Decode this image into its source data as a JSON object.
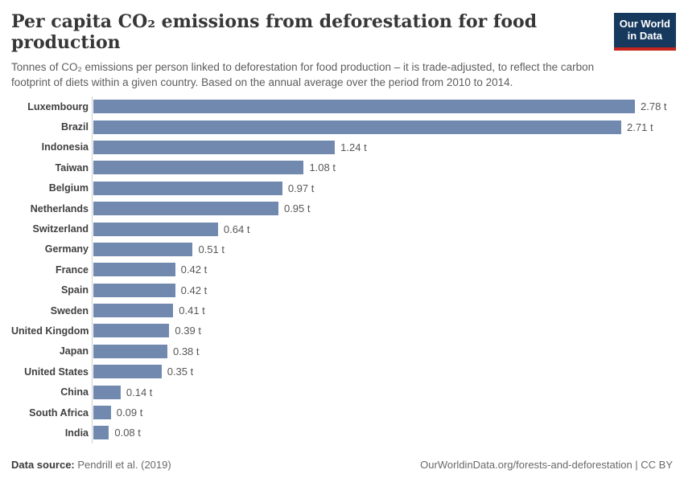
{
  "header": {
    "title": "Per capita CO₂ emissions from deforestation for food production",
    "subtitle": "Tonnes of CO₂ emissions per person linked to deforestation for food production – it is trade-adjusted, to reflect the carbon footprint of diets within a given country. Based on the annual average over the period from 2010 to 2014."
  },
  "logo": {
    "line1": "Our World",
    "line2": "in Data",
    "bg_color": "#16395d",
    "accent_color": "#c4261d"
  },
  "chart_data": {
    "type": "bar",
    "orientation": "horizontal",
    "title": "Per capita CO₂ emissions from deforestation for food production",
    "unit": "t",
    "xlim": [
      0,
      2.78
    ],
    "grid": false,
    "bar_color": "#7189af",
    "axis_line_color": "#cfcfcf",
    "value_label_position": "end",
    "categories": [
      "Luxembourg",
      "Brazil",
      "Indonesia",
      "Taiwan",
      "Belgium",
      "Netherlands",
      "Switzerland",
      "Germany",
      "France",
      "Spain",
      "Sweden",
      "United Kingdom",
      "Japan",
      "United States",
      "China",
      "South Africa",
      "India"
    ],
    "values": [
      2.78,
      2.71,
      1.24,
      1.08,
      0.97,
      0.95,
      0.64,
      0.51,
      0.42,
      0.42,
      0.41,
      0.39,
      0.38,
      0.35,
      0.14,
      0.09,
      0.08
    ],
    "value_labels": [
      "2.78 t",
      "2.71 t",
      "1.24 t",
      "1.08 t",
      "0.97 t",
      "0.95 t",
      "0.64 t",
      "0.51 t",
      "0.42 t",
      "0.42 t",
      "0.41 t",
      "0.39 t",
      "0.38 t",
      "0.35 t",
      "0.14 t",
      "0.09 t",
      "0.08 t"
    ]
  },
  "footer": {
    "source_label": "Data source:",
    "source_text": " Pendrill et al. (2019)",
    "right_text": "OurWorldinData.org/forests-and-deforestation | CC BY"
  }
}
